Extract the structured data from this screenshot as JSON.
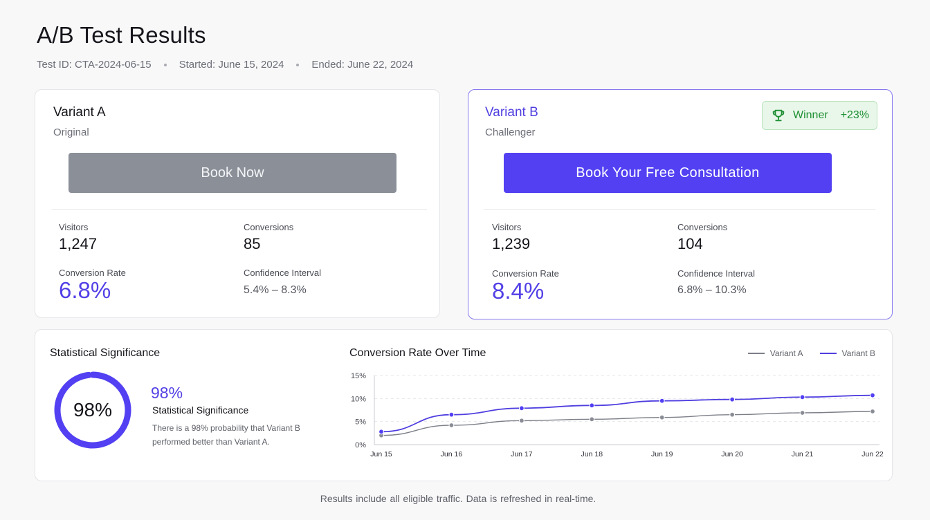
{
  "header": {
    "title": "A/B Test Results",
    "test_id": "Test ID: CTA-2024-06-15",
    "started": "Started: June 15, 2024",
    "ended": "Ended: June 22, 2024"
  },
  "variant_a": {
    "title": "Variant A",
    "subtitle": "Original",
    "cta_label": "Book Now",
    "visitors_label": "Visitors",
    "visitors": "1,247",
    "conversions_label": "Conversions",
    "conversions": "85",
    "rate_label": "Conversion Rate",
    "rate": "6.8%",
    "ci_label": "Confidence Interval",
    "ci": "5.4% – 8.3%",
    "cta_color": "#8a8f98"
  },
  "variant_b": {
    "title": "Variant B",
    "subtitle": "Challenger",
    "cta_label": "Book Your Free Consultation",
    "winner_label": "Winner",
    "winner_lift": "+23%",
    "winner_icon": "trophy-icon",
    "visitors_label": "Visitors",
    "visitors": "1,239",
    "conversions_label": "Conversions",
    "conversions": "104",
    "rate_label": "Conversion Rate",
    "rate": "8.4%",
    "ci_label": "Confidence Interval",
    "ci": "6.8% – 10.3%",
    "cta_color": "#5240f2"
  },
  "significance": {
    "title": "Statistical Significance",
    "ring_label": "98%",
    "value": 0.98,
    "pct": "98%",
    "subtitle": "Statistical Significance",
    "description": "There is a 98% probability that Variant B performed better than Variant A."
  },
  "chart": {
    "title": "Conversion Rate Over Time"
  },
  "chart_data": {
    "type": "line",
    "title": "Conversion Rate Over Time",
    "xlabel": "",
    "ylabel": "",
    "categories": [
      "Jun 15",
      "Jun 16",
      "Jun 17",
      "Jun 18",
      "Jun 19",
      "Jun 20",
      "Jun 21",
      "Jun 22"
    ],
    "yticks": [
      "0%",
      "5%",
      "10%",
      "15%"
    ],
    "ylim": [
      0,
      15
    ],
    "grid": true,
    "legend_position": "top-right",
    "series": [
      {
        "name": "Variant A",
        "color": "#7c7f88",
        "values": [
          2.0,
          4.2,
          5.2,
          5.5,
          5.9,
          6.5,
          6.9,
          7.2
        ]
      },
      {
        "name": "Variant B",
        "color": "#4f3fe0",
        "values": [
          2.8,
          6.5,
          7.9,
          8.5,
          9.5,
          9.8,
          10.3,
          10.7
        ]
      }
    ]
  },
  "footer": {
    "note": "Results include all eligible traffic. Data is refreshed in real-time."
  }
}
